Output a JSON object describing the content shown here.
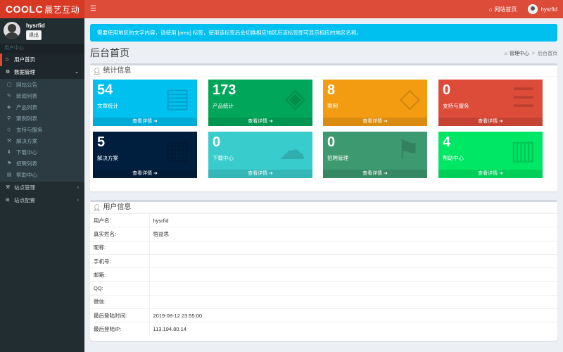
{
  "colors": {
    "topbar": "#dd4b39",
    "sidebar": "#222d32",
    "alert": "#00c0ef"
  },
  "header": {
    "logo_main": "COOLC",
    "logo_sub": "晨艺互动",
    "menu_icon": "hamburger-icon",
    "site_home": "网站首页",
    "site_home_icon": "home-icon",
    "username": "hysrfid"
  },
  "sidebar": {
    "user": {
      "name": "hysrfid",
      "logout": "退出"
    },
    "section": "用户中心",
    "items": [
      {
        "label": "用户首页",
        "icon": "home-icon"
      },
      {
        "label": "数据管理",
        "icon": "gear-icon"
      },
      {
        "label": "站点管理",
        "icon": "wrench-icon"
      },
      {
        "label": "站点配置",
        "icon": "sitemap-icon"
      }
    ],
    "subitems": [
      {
        "label": "网站公告",
        "icon": "file-icon"
      },
      {
        "label": "新闻列表",
        "icon": "edit-icon"
      },
      {
        "label": "产品列表",
        "icon": "cube-icon"
      },
      {
        "label": "案例列表",
        "icon": "pin-icon"
      },
      {
        "label": "支持与服务",
        "icon": "handshake-icon"
      },
      {
        "label": "解决方案",
        "icon": "wrench-icon"
      },
      {
        "label": "下载中心",
        "icon": "download-icon"
      },
      {
        "label": "招聘列表",
        "icon": "flag-icon"
      },
      {
        "label": "帮助中心",
        "icon": "book-icon"
      }
    ]
  },
  "main": {
    "alert": "需要使用地区的文字内容，请使用 [area] 标签，使用该标签后会切换相应地区后该标签即可显示相应的地区名称。",
    "title": "后台首页",
    "breadcrumb": {
      "root": "管理中心",
      "current": "后台首页"
    }
  },
  "stats": {
    "title": "统计信息",
    "detail_label": "查看详情",
    "tiles": [
      {
        "value": "54",
        "label": "文章统计",
        "color": "#00c0ef",
        "icon": "document-icon"
      },
      {
        "value": "173",
        "label": "产品统计",
        "color": "#00a65a",
        "icon": "cube-icon"
      },
      {
        "value": "8",
        "label": "案例",
        "color": "#f39c12",
        "icon": "handshake-icon"
      },
      {
        "value": "0",
        "label": "支持与服务",
        "color": "#dd4b39",
        "icon": "server-icon"
      },
      {
        "value": "5",
        "label": "解决方案",
        "color": "#001f3f",
        "icon": "cubes-icon"
      },
      {
        "value": "0",
        "label": "下载中心",
        "color": "#39cccc",
        "icon": "cloud-download-icon"
      },
      {
        "value": "0",
        "label": "招聘管理",
        "color": "#3d9970",
        "icon": "flag-icon"
      },
      {
        "value": "4",
        "label": "帮助中心",
        "color": "#00e765",
        "icon": "book-icon"
      }
    ]
  },
  "user_info": {
    "title": "用户信息",
    "rows": [
      {
        "key": "用户名:",
        "value": "hysrfid"
      },
      {
        "key": "真实姓名:",
        "value": "悟益思"
      },
      {
        "key": "昵称:",
        "value": ""
      },
      {
        "key": "手机号:",
        "value": ""
      },
      {
        "key": "邮箱:",
        "value": ""
      },
      {
        "key": "QQ:",
        "value": ""
      },
      {
        "key": "微信:",
        "value": ""
      },
      {
        "key": "最后登陆时间:",
        "value": "2019-08-12 23:55:00"
      },
      {
        "key": "最后登陆IP:",
        "value": "113.194.80.14"
      }
    ]
  }
}
